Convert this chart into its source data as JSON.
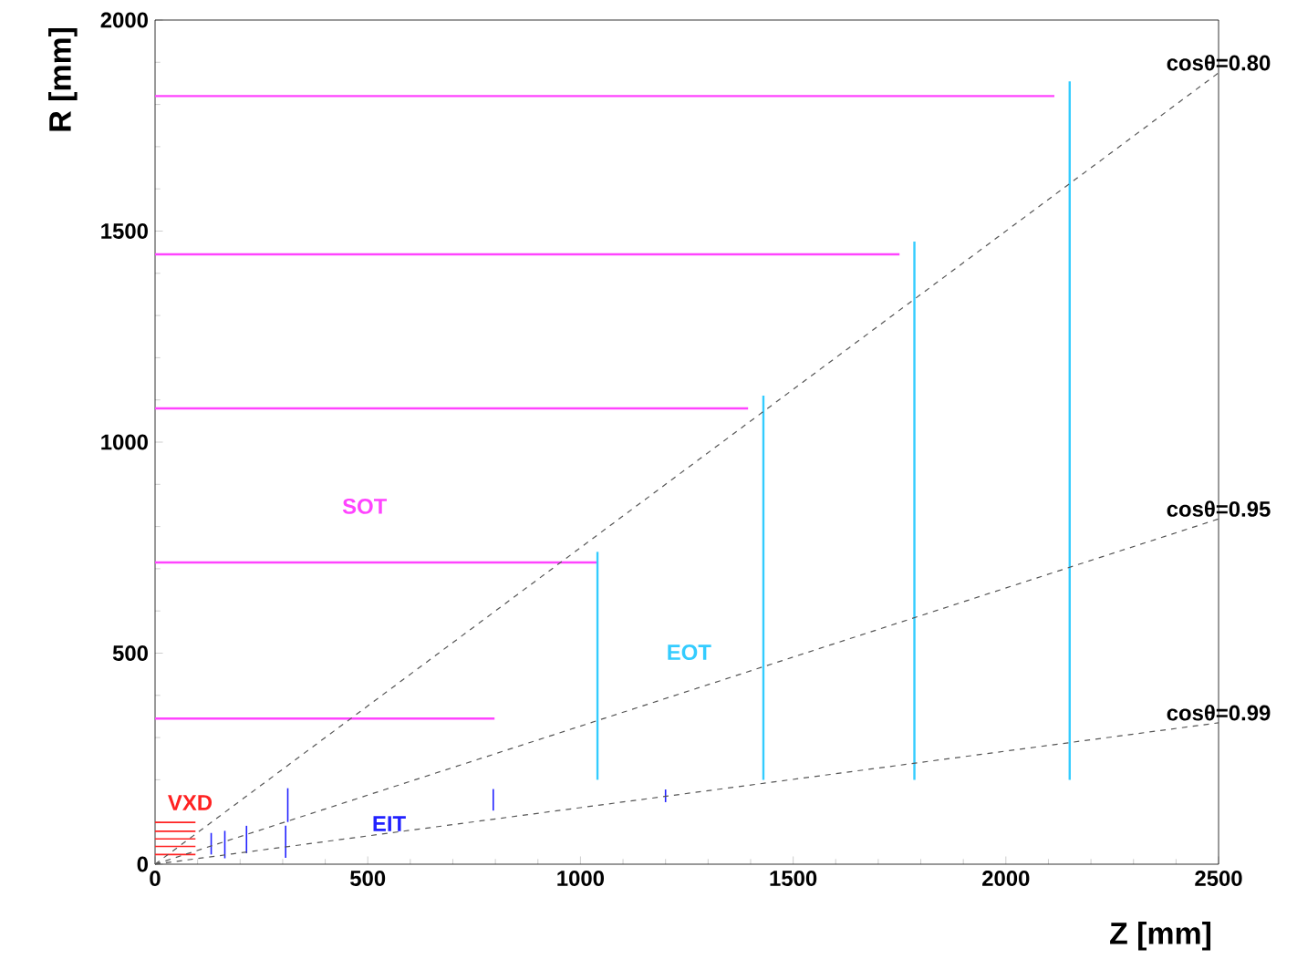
{
  "chart_data": {
    "type": "line",
    "xlabel": "Z [mm]",
    "ylabel": "R [mm]",
    "xlim": [
      0,
      2500
    ],
    "ylim": [
      0,
      2000
    ],
    "xticks": [
      0,
      500,
      1000,
      1500,
      2000,
      2500
    ],
    "yticks": [
      0,
      500,
      1000,
      1500,
      2000
    ],
    "grid": false,
    "series": [
      {
        "color": "#ff44ff",
        "x": [
          0,
          798
        ],
        "values": [
          345,
          345
        ]
      },
      {
        "color": "#ff44ff",
        "x": [
          0,
          1038
        ],
        "values": [
          715,
          715
        ]
      },
      {
        "color": "#ff44ff",
        "x": [
          0,
          1394
        ],
        "values": [
          1080,
          1080
        ]
      },
      {
        "color": "#ff44ff",
        "x": [
          0,
          1750
        ],
        "values": [
          1445,
          1445
        ]
      },
      {
        "color": "#ff44ff",
        "x": [
          0,
          2114
        ],
        "values": [
          1820,
          1820
        ]
      },
      {
        "color": "#33ccff",
        "x": [
          1040,
          1040
        ],
        "values": [
          200,
          740
        ]
      },
      {
        "color": "#33ccff",
        "x": [
          1430,
          1430
        ],
        "values": [
          200,
          1110
        ]
      },
      {
        "color": "#33ccff",
        "x": [
          1785,
          1785
        ],
        "values": [
          200,
          1475
        ]
      },
      {
        "color": "#33ccff",
        "x": [
          2150,
          2150
        ],
        "values": [
          200,
          1855
        ]
      },
      {
        "color": "#ff2222",
        "x": [
          0,
          95
        ],
        "values": [
          23,
          23
        ]
      },
      {
        "color": "#ff2222",
        "x": [
          0,
          95
        ],
        "values": [
          42,
          42
        ]
      },
      {
        "color": "#ff2222",
        "x": [
          0,
          95
        ],
        "values": [
          60,
          60
        ]
      },
      {
        "color": "#ff2222",
        "x": [
          0,
          95
        ],
        "values": [
          78,
          78
        ]
      },
      {
        "color": "#ff2222",
        "x": [
          0,
          95
        ],
        "values": [
          99,
          99
        ]
      },
      {
        "color": "#2222ff",
        "x": [
          132,
          132
        ],
        "values": [
          23,
          74
        ]
      },
      {
        "color": "#2222ff",
        "x": [
          164,
          164
        ],
        "values": [
          14,
          79
        ]
      },
      {
        "color": "#2222ff",
        "x": [
          215,
          215
        ],
        "values": [
          26,
          91
        ]
      },
      {
        "color": "#2222ff",
        "x": [
          307,
          307
        ],
        "values": [
          15,
          91
        ]
      },
      {
        "color": "#2222ff",
        "x": [
          312,
          312
        ],
        "values": [
          100,
          180
        ]
      },
      {
        "color": "#2222ff",
        "x": [
          795,
          795
        ],
        "values": [
          127,
          178
        ]
      },
      {
        "color": "#2222ff",
        "x": [
          1200,
          1200
        ],
        "values": [
          147,
          177
        ]
      },
      {
        "name": "cosθ=0.80",
        "color": "#555555",
        "line_style": "dashed",
        "x": [
          0,
          2500
        ],
        "values": [
          0,
          1875
        ]
      },
      {
        "name": "cosθ=0.95",
        "color": "#555555",
        "line_style": "dashed",
        "x": [
          0,
          2500
        ],
        "values": [
          0,
          818
        ]
      },
      {
        "name": "cosθ=0.99",
        "color": "#555555",
        "line_style": "dashed",
        "x": [
          0,
          2500
        ],
        "values": [
          0,
          335
        ]
      }
    ],
    "annotations": [
      "SOT",
      "EOT",
      "VXD",
      "EIT"
    ]
  }
}
